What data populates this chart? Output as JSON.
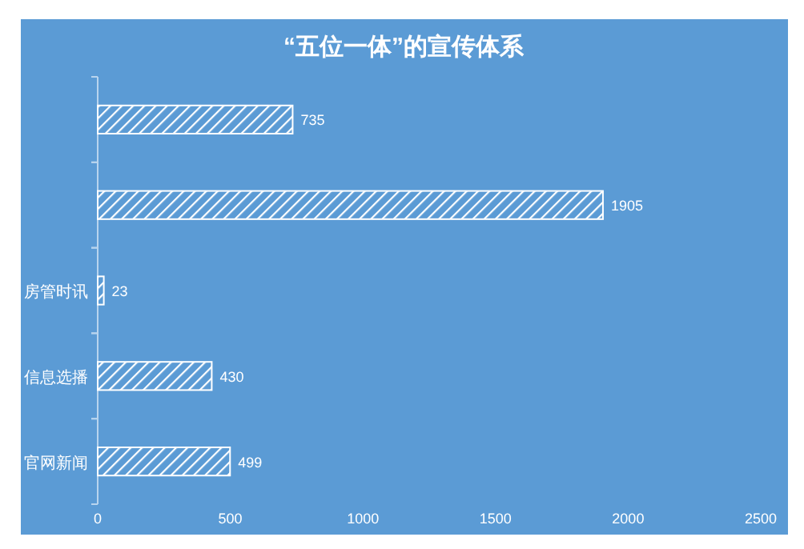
{
  "chart_data": {
    "type": "bar",
    "orientation": "horizontal",
    "title": "“五位一体”的宣传体系",
    "categories": [
      null,
      null,
      "房管时讯",
      "信息选播",
      "官网新闻"
    ],
    "values": [
      735,
      1905,
      23,
      430,
      499
    ],
    "color": "#ffffff",
    "xlim": [
      0,
      2500
    ],
    "xticks": [
      0,
      500,
      1000,
      1500,
      2000,
      2500
    ],
    "grid": false,
    "data_labels": true
  }
}
